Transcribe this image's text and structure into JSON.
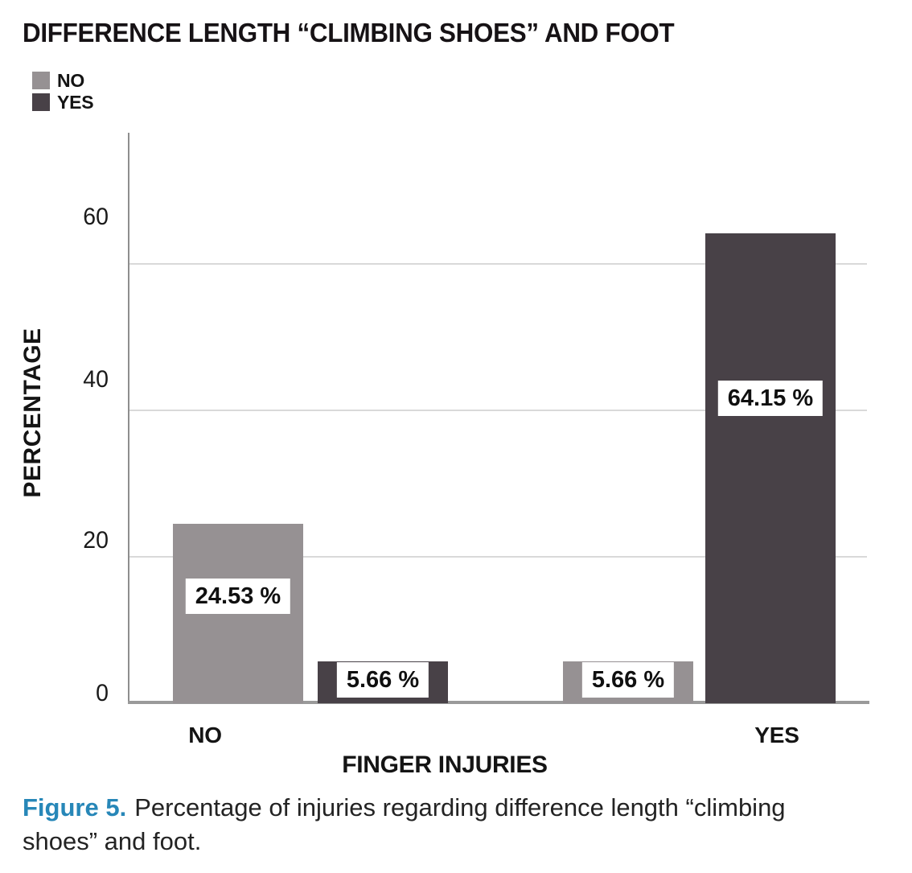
{
  "title": "DIFFERENCE LENGTH “CLIMBING SHOES” AND FOOT",
  "legend": {
    "items": [
      {
        "label": "NO",
        "color": "#969193"
      },
      {
        "label": "YES",
        "color": "#484147"
      }
    ]
  },
  "y_axis": {
    "title": "PERCENTAGE",
    "ticks": [
      "0",
      "20",
      "40",
      "60"
    ]
  },
  "x_axis": {
    "title": "FINGER INJURIES",
    "categories": [
      "NO",
      "YES"
    ]
  },
  "value_labels": [
    "24.53 %",
    "5.66 %",
    "5.66 %",
    "64.15 %"
  ],
  "caption": {
    "label": "Figure 5.",
    "label_color": "#2787b8",
    "line1": "Percentage of injuries regarding difference length “climbing",
    "line2": "shoes” and foot."
  },
  "colors": {
    "bar_no": "#969193",
    "bar_yes": "#484147",
    "gridline": "#d9d9d9",
    "axis_y": "#8e8e8e",
    "axis_x": "#9a9a9a"
  },
  "chart_data": {
    "type": "bar",
    "categories": [
      "NO",
      "YES"
    ],
    "series": [
      {
        "name": "NO",
        "values": [
          24.53,
          5.66
        ]
      },
      {
        "name": "YES",
        "values": [
          5.66,
          64.15
        ]
      }
    ],
    "title": "DIFFERENCE LENGTH “CLIMBING SHOES” AND FOOT",
    "xlabel": "FINGER INJURIES",
    "ylabel": "PERCENTAGE",
    "ylim": [
      0,
      70
    ],
    "yticks": [
      0,
      20,
      40,
      60
    ],
    "grid": "horizontal",
    "legend_position": "top-left",
    "value_label_format": "{value} %"
  }
}
